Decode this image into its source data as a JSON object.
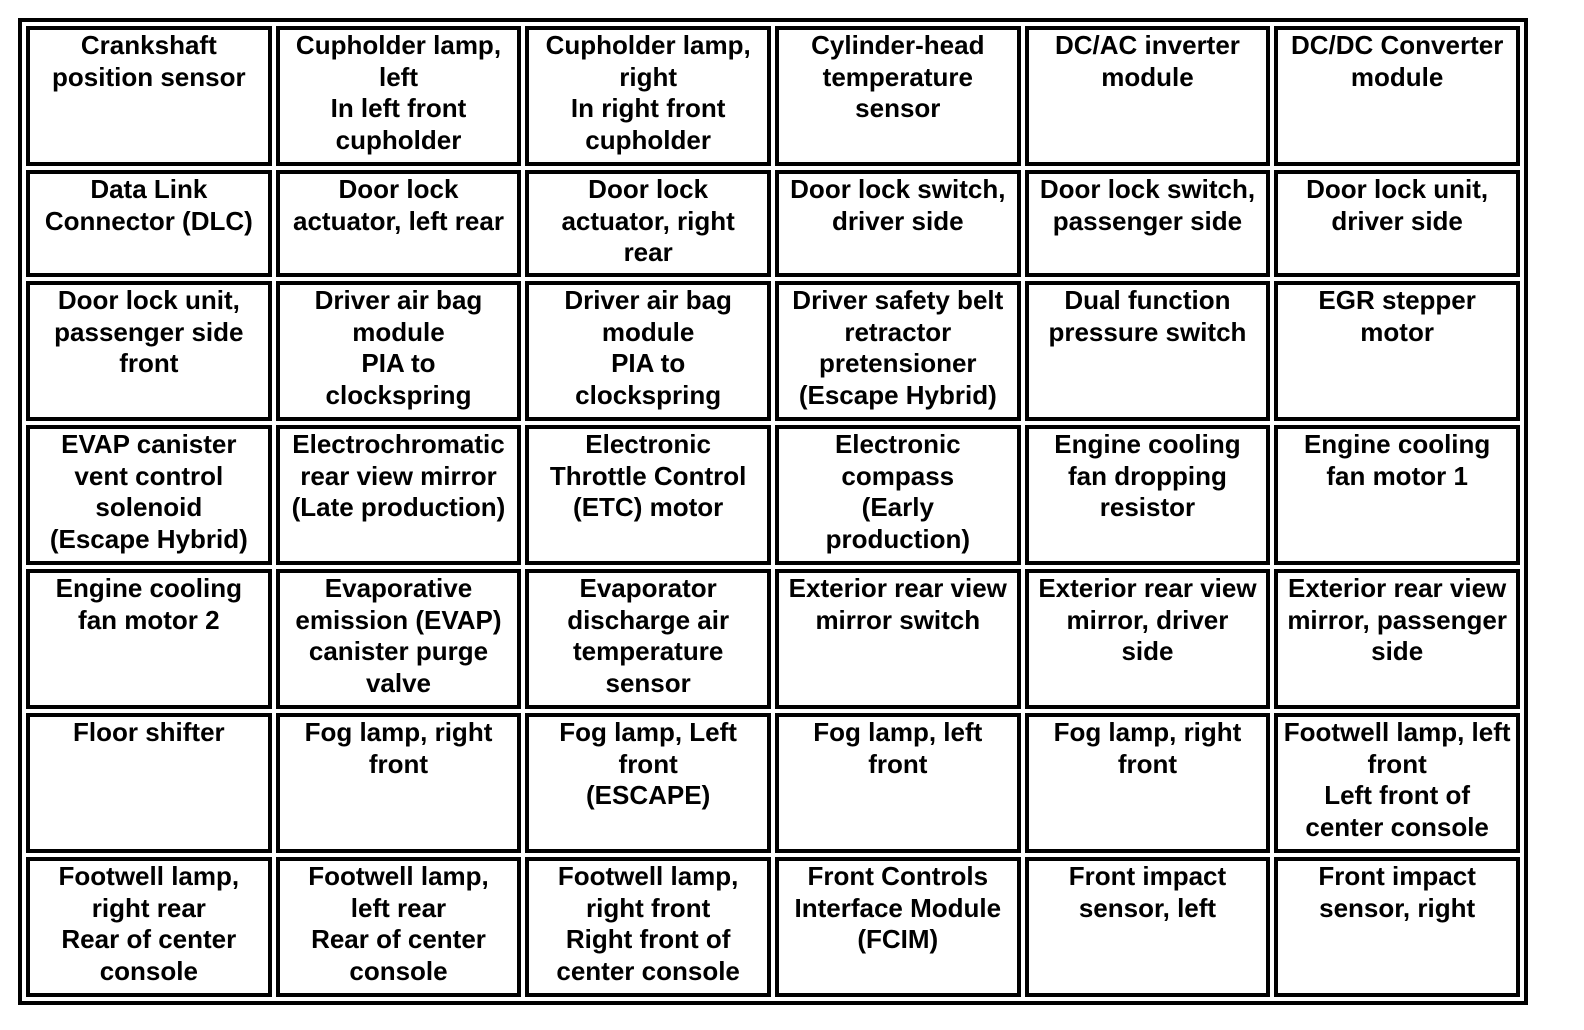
{
  "rows": [
    [
      "Crankshaft\nposition sensor",
      "Cupholder lamp,\nleft\nIn left front\ncupholder",
      "Cupholder lamp,\nright\nIn right front\ncupholder",
      "Cylinder-head\ntemperature\nsensor",
      "DC/AC inverter\nmodule",
      "DC/DC Converter\nmodule"
    ],
    [
      "Data Link\nConnector (DLC)",
      "Door lock\nactuator, left rear",
      "Door lock\nactuator, right\nrear",
      "Door lock switch,\ndriver side",
      "Door lock switch,\npassenger side",
      "Door lock unit,\ndriver side"
    ],
    [
      "Door lock unit,\npassenger side\nfront",
      "Driver air bag\nmodule\nPIA to\nclockspring",
      "Driver air bag\nmodule\nPIA to\nclockspring",
      "Driver safety belt\nretractor\npretensioner\n(Escape Hybrid)",
      "Dual function\npressure switch",
      "EGR stepper\nmotor"
    ],
    [
      "EVAP canister\nvent control\nsolenoid\n(Escape Hybrid)",
      "Electrochromatic\nrear view mirror\n(Late production)",
      "Electronic\nThrottle Control\n(ETC) motor",
      "Electronic\ncompass\n(Early\nproduction)",
      "Engine cooling\nfan dropping\nresistor",
      "Engine cooling\nfan motor 1"
    ],
    [
      "Engine cooling\nfan motor 2",
      "Evaporative\nemission (EVAP)\ncanister purge\nvalve",
      "Evaporator\ndischarge air\ntemperature\nsensor",
      "Exterior rear view\nmirror switch",
      "Exterior rear view\nmirror, driver\nside",
      "Exterior rear view\nmirror, passenger\nside"
    ],
    [
      "Floor shifter",
      "Fog lamp, right\nfront",
      "Fog lamp, Left\nfront\n(ESCAPE)",
      "Fog lamp, left\nfront",
      "Fog lamp, right\nfront",
      "Footwell lamp, left\nfront\nLeft front of\ncenter console"
    ],
    [
      "Footwell lamp,\nright rear\nRear of center\nconsole",
      "Footwell lamp,\nleft rear\nRear of center\nconsole",
      "Footwell lamp,\nright front\nRight front of\ncenter console",
      "Front Controls\nInterface Module\n(FCIM)",
      "Front impact\nsensor, left",
      "Front impact\nsensor, right"
    ]
  ]
}
